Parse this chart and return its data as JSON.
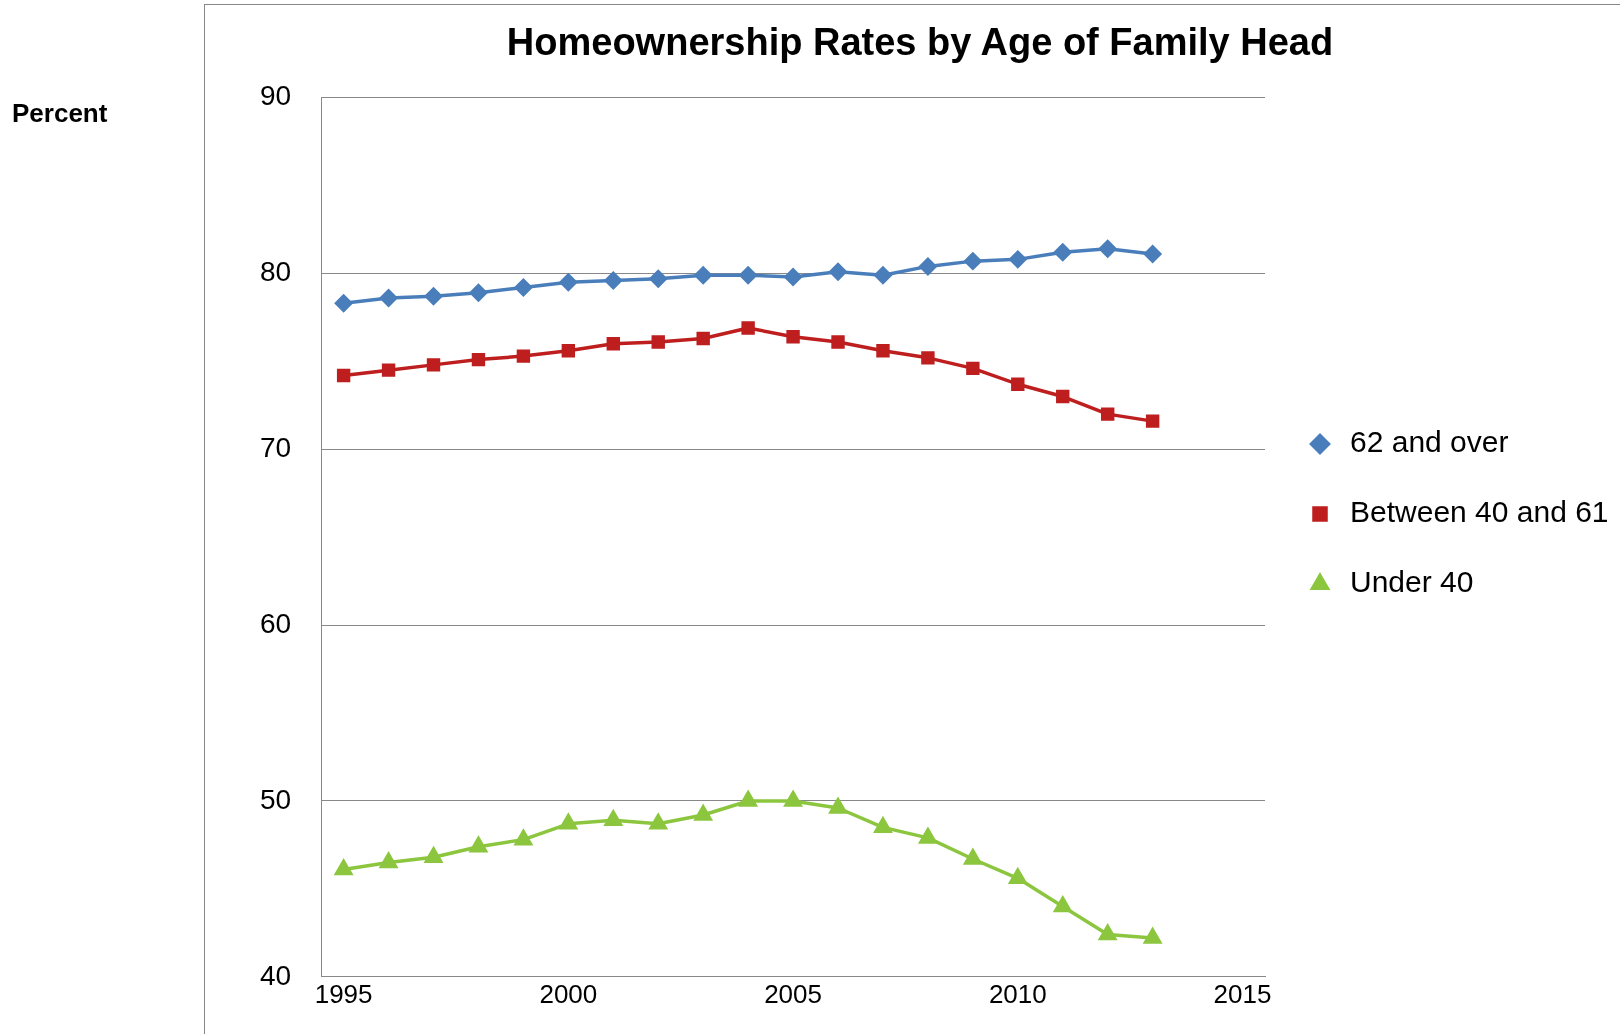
{
  "chart_data": {
    "type": "line",
    "title": "Homeownership Rates by Age of Family Head",
    "annotations": [
      "Percent"
    ],
    "x": [
      1995,
      1996,
      1997,
      1998,
      1999,
      2000,
      2001,
      2002,
      2003,
      2004,
      2005,
      2006,
      2007,
      2008,
      2009,
      2010,
      2011,
      2012,
      2013
    ],
    "xlim": [
      1994.5,
      2015.5
    ],
    "xticks": [
      1995,
      2000,
      2005,
      2010,
      2015
    ],
    "ylim": [
      40,
      90
    ],
    "yticks": [
      40,
      50,
      60,
      70,
      80,
      90
    ],
    "grid": "y",
    "legend": "right",
    "series": [
      {
        "name": "62 and over",
        "color": "#4a7ebb",
        "marker": "diamond",
        "values": [
          78.3,
          78.6,
          78.7,
          78.9,
          79.2,
          79.5,
          79.6,
          79.7,
          79.9,
          79.9,
          79.8,
          80.1,
          79.9,
          80.4,
          80.7,
          80.8,
          81.2,
          81.4,
          81.1
        ]
      },
      {
        "name": "Between 40 and 61",
        "color": "#be1e1e",
        "marker": "square",
        "values": [
          74.2,
          74.5,
          74.8,
          75.1,
          75.3,
          75.6,
          76.0,
          76.1,
          76.3,
          76.9,
          76.4,
          76.1,
          75.6,
          75.2,
          74.6,
          73.7,
          73.0,
          72.0,
          71.6
        ]
      },
      {
        "name": "Under 40",
        "color": "#8cc63f",
        "marker": "triangle",
        "values": [
          46.1,
          46.5,
          46.8,
          47.4,
          47.8,
          48.7,
          48.9,
          48.7,
          49.2,
          50.0,
          50.0,
          49.6,
          48.5,
          47.9,
          46.7,
          45.6,
          44.0,
          42.4,
          42.2
        ]
      }
    ]
  }
}
